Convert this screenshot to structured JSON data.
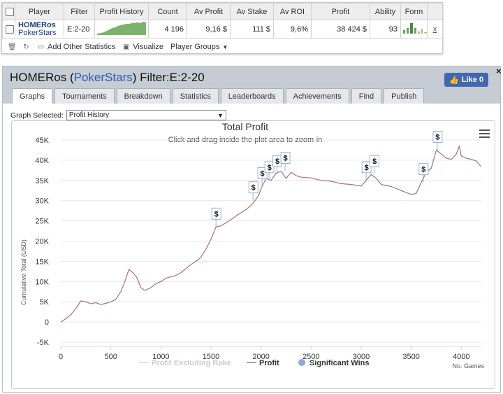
{
  "stats_table": {
    "headers": [
      "Player",
      "Filter",
      "Profit History",
      "Count",
      "Av Profit",
      "Av Stake",
      "Av ROI",
      "Profit",
      "Ability",
      "Form"
    ],
    "row": {
      "player_name": "HOMERos",
      "player_site": "PokerStars",
      "filter": "E:2-20",
      "count": "4 196",
      "av_profit": "9,16 $",
      "av_stake": "111 $",
      "av_roi": "9,6%",
      "profit": "38 424 $",
      "ability": "93",
      "remove": "x"
    },
    "toolbar": {
      "add_other": "Add Other Statistics",
      "visualize": "Visualize",
      "player_groups": "Player Groups"
    }
  },
  "panel": {
    "player_name": "HOMERos",
    "site": "PokerStars",
    "filter_text": "Filter:E:2-20",
    "like_label": "Like 0",
    "close": "×",
    "tabs": [
      "Graphs",
      "Tournaments",
      "Breakdown",
      "Statistics",
      "Leaderboards",
      "Achievements",
      "Find",
      "Publish"
    ],
    "active_tab": "Graphs",
    "graph_selected_label": "Graph Selected:",
    "graph_selected_value": "Profit History"
  },
  "chart_data": {
    "type": "line",
    "title": "Total Profit",
    "subtitle": "Click and drag inside the plot area to zoom-in",
    "ylabel": "Cumulative Total (USD)",
    "xlabel": "No. Games",
    "xlim": [
      0,
      4200
    ],
    "ylim": [
      -5000,
      45000
    ],
    "x_ticks": [
      0,
      500,
      1000,
      1500,
      2000,
      2500,
      3000,
      3500,
      4000
    ],
    "y_ticks": [
      -5000,
      0,
      5000,
      10000,
      15000,
      20000,
      25000,
      30000,
      35000,
      40000,
      45000
    ],
    "y_tick_labels": [
      "-5K",
      "0",
      "5K",
      "10K",
      "15K",
      "20K",
      "25K",
      "30K",
      "35K",
      "40K",
      "45K"
    ],
    "legend": [
      "Profit Excluding Rake",
      "Profit",
      "Significant Wins"
    ],
    "legend_placement": "bottom",
    "line_color": "#a97072",
    "series": [
      {
        "name": "Profit",
        "points": [
          [
            0,
            0
          ],
          [
            50,
            800
          ],
          [
            100,
            1800
          ],
          [
            150,
            3300
          ],
          [
            200,
            5200
          ],
          [
            250,
            5000
          ],
          [
            300,
            4500
          ],
          [
            350,
            4800
          ],
          [
            400,
            4300
          ],
          [
            450,
            4600
          ],
          [
            500,
            5000
          ],
          [
            550,
            5600
          ],
          [
            600,
            7500
          ],
          [
            640,
            10000
          ],
          [
            680,
            13000
          ],
          [
            720,
            12200
          ],
          [
            760,
            11000
          ],
          [
            800,
            8500
          ],
          [
            840,
            7800
          ],
          [
            900,
            8500
          ],
          [
            950,
            9500
          ],
          [
            1000,
            10000
          ],
          [
            1050,
            10800
          ],
          [
            1100,
            11200
          ],
          [
            1150,
            11500
          ],
          [
            1200,
            12200
          ],
          [
            1250,
            13200
          ],
          [
            1300,
            14200
          ],
          [
            1350,
            15000
          ],
          [
            1400,
            16000
          ],
          [
            1450,
            18000
          ],
          [
            1500,
            20500
          ],
          [
            1550,
            23500
          ],
          [
            1600,
            23800
          ],
          [
            1650,
            24500
          ],
          [
            1700,
            25300
          ],
          [
            1750,
            26200
          ],
          [
            1800,
            27000
          ],
          [
            1850,
            27800
          ],
          [
            1900,
            28800
          ],
          [
            1940,
            30000
          ],
          [
            1980,
            31500
          ],
          [
            2000,
            33000
          ],
          [
            2050,
            35500
          ],
          [
            2100,
            35000
          ],
          [
            2150,
            36800
          ],
          [
            2200,
            37300
          ],
          [
            2250,
            35500
          ],
          [
            2300,
            37000
          ],
          [
            2350,
            36200
          ],
          [
            2400,
            35800
          ],
          [
            2500,
            35600
          ],
          [
            2600,
            35000
          ],
          [
            2700,
            34800
          ],
          [
            2800,
            34200
          ],
          [
            2900,
            34000
          ],
          [
            3000,
            33600
          ],
          [
            3050,
            35000
          ],
          [
            3100,
            36500
          ],
          [
            3150,
            35500
          ],
          [
            3200,
            34000
          ],
          [
            3300,
            33500
          ],
          [
            3400,
            32500
          ],
          [
            3500,
            31500
          ],
          [
            3550,
            31800
          ],
          [
            3600,
            34500
          ],
          [
            3650,
            37000
          ],
          [
            3700,
            38000
          ],
          [
            3750,
            42500
          ],
          [
            3800,
            41500
          ],
          [
            3850,
            40500
          ],
          [
            3900,
            40200
          ],
          [
            3950,
            41500
          ],
          [
            3980,
            43500
          ],
          [
            4000,
            41000
          ],
          [
            4050,
            40500
          ],
          [
            4100,
            40200
          ],
          [
            4150,
            39800
          ],
          [
            4196,
            38424
          ]
        ]
      }
    ],
    "significant_wins": [
      [
        1550,
        23500
      ],
      [
        1920,
        30000
      ],
      [
        2010,
        33500
      ],
      [
        2080,
        35000
      ],
      [
        2160,
        36500
      ],
      [
        2240,
        37300
      ],
      [
        3050,
        35000
      ],
      [
        3130,
        36500
      ],
      [
        3620,
        34500
      ],
      [
        3760,
        42500
      ]
    ],
    "significant_win_label": "$"
  }
}
